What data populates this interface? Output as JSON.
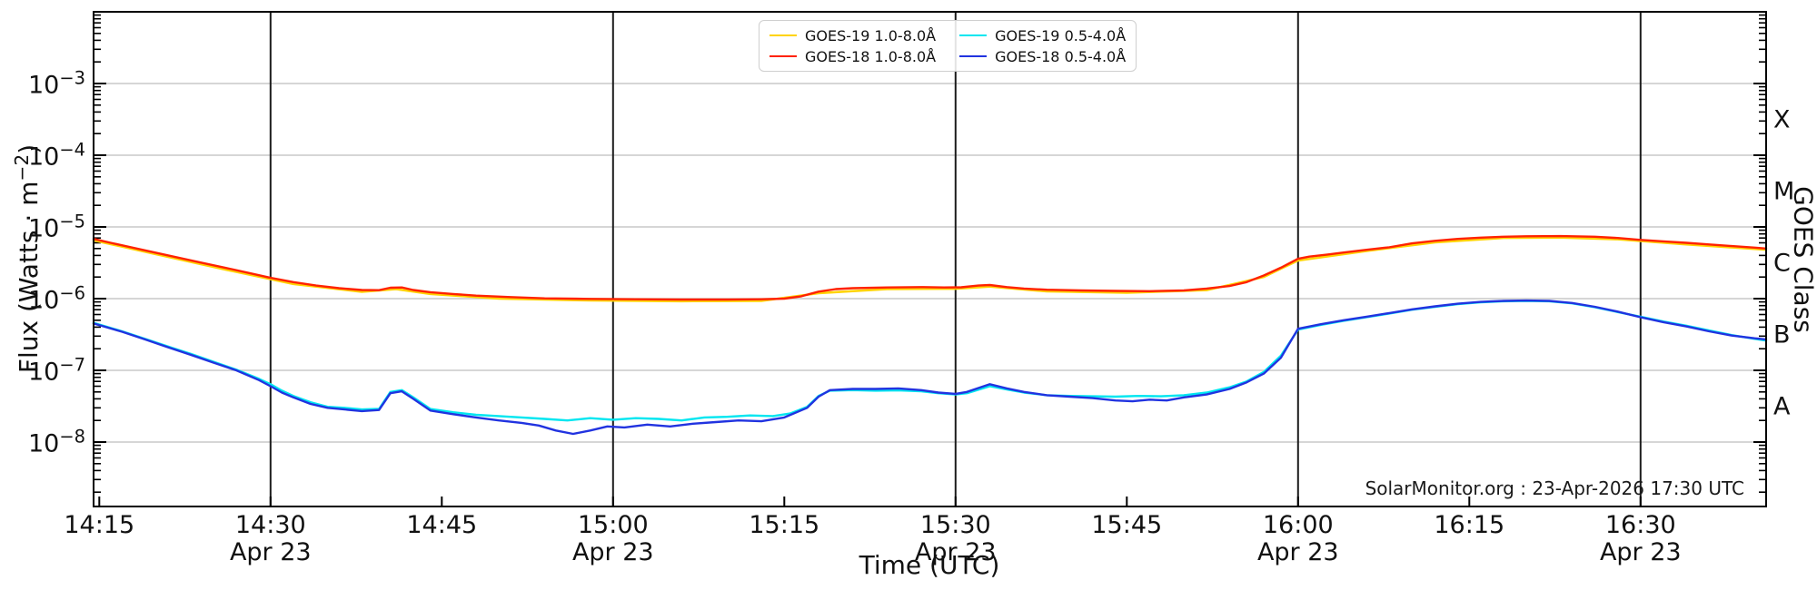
{
  "footer": {
    "credit": "SolarMonitor.org : 23-Apr-2026 17:30 UTC"
  },
  "chart_data": {
    "type": "line",
    "title": "",
    "xlabel": "Time (UTC)",
    "ylabel_prefix": "Flux (Watts · m",
    "ylabel_sup": "−2",
    "ylabel_suffix": ")",
    "right_axis_label": "GOES Class",
    "x_unit": "minutes after 14:00 UTC, 23 Apr",
    "xlim_minutes": [
      14.5,
      161
    ],
    "ylim": [
      1.3e-09,
      0.01
    ],
    "grid": "horizontal gray lines at each decade; dark vertical lines at 30-minute marks",
    "legend_position": "top center, 2 columns",
    "colors": {
      "grid": "#c9c9c9",
      "dark_gridline": "#1c1c1c",
      "spine": "#000000",
      "text": "#111111",
      "goes19_long": "#ffd300",
      "goes18_long": "#ff2200",
      "goes19_short": "#00e6f0",
      "goes18_short": "#2133e0"
    },
    "x_major_ticks": [
      {
        "minute": 15,
        "label": "14:15",
        "sublabel": ""
      },
      {
        "minute": 30,
        "label": "14:30",
        "sublabel": "Apr 23"
      },
      {
        "minute": 45,
        "label": "14:45",
        "sublabel": ""
      },
      {
        "minute": 60,
        "label": "15:00",
        "sublabel": "Apr 23"
      },
      {
        "minute": 75,
        "label": "15:15",
        "sublabel": ""
      },
      {
        "minute": 90,
        "label": "15:30",
        "sublabel": "Apr 23"
      },
      {
        "minute": 105,
        "label": "15:45",
        "sublabel": ""
      },
      {
        "minute": 120,
        "label": "16:00",
        "sublabel": "Apr 23"
      },
      {
        "minute": 135,
        "label": "16:15",
        "sublabel": ""
      },
      {
        "minute": 150,
        "label": "16:30",
        "sublabel": "Apr 23"
      }
    ],
    "x_dark_gridline_minutes": [
      30,
      60,
      90,
      120,
      150
    ],
    "y_major_exponents": [
      -3,
      -4,
      -5,
      -6,
      -7,
      -8
    ],
    "goes_class_labels": [
      {
        "label": "X",
        "flux_exponent": -3.5
      },
      {
        "label": "M",
        "flux_exponent": -4.5
      },
      {
        "label": "C",
        "flux_exponent": -5.5
      },
      {
        "label": "B",
        "flux_exponent": -6.5
      },
      {
        "label": "A",
        "flux_exponent": -7.5
      }
    ],
    "legend_items": [
      {
        "label": "GOES-19 1.0-8.0Å",
        "color": "#ffd300"
      },
      {
        "label": "GOES-18 1.0-8.0Å",
        "color": "#ff2200"
      },
      {
        "label": "GOES-19 0.5-4.0Å",
        "color": "#00e6f0"
      },
      {
        "label": "GOES-18 0.5-4.0Å",
        "color": "#2133e0"
      }
    ],
    "series": [
      {
        "id": "goes19-long",
        "name": "GOES-19 1.0-8.0Å",
        "color": "#ffd300",
        "points": [
          [
            14.5,
            6.5e-06
          ],
          [
            20,
            4.15e-06
          ],
          [
            26,
            2.55e-06
          ],
          [
            32,
            1.6e-06
          ],
          [
            38,
            1.24e-06
          ],
          [
            41,
            1.36e-06
          ],
          [
            44,
            1.16e-06
          ],
          [
            50,
            1e-06
          ],
          [
            58,
            9.4e-07
          ],
          [
            66,
            9.2e-07
          ],
          [
            73,
            9.3e-07
          ],
          [
            78,
            1.19e-06
          ],
          [
            84,
            1.36e-06
          ],
          [
            90,
            1.37e-06
          ],
          [
            93,
            1.47e-06
          ],
          [
            98,
            1.26e-06
          ],
          [
            105,
            1.21e-06
          ],
          [
            112,
            1.31e-06
          ],
          [
            117,
            2e-06
          ],
          [
            120,
            3.4e-06
          ],
          [
            126,
            4.6e-06
          ],
          [
            132,
            6.1e-06
          ],
          [
            138,
            7e-06
          ],
          [
            143,
            7.1e-06
          ],
          [
            148,
            6.7e-06
          ],
          [
            154,
            5.7e-06
          ],
          [
            161,
            4.8e-06
          ]
        ]
      },
      {
        "id": "goes19-short",
        "name": "GOES-19 0.5-4.0Å",
        "color": "#00e6f0",
        "points": [
          [
            14.5,
            4.6e-07
          ],
          [
            17,
            3.5e-07
          ],
          [
            19,
            2.75e-07
          ],
          [
            21,
            2.15e-07
          ],
          [
            23,
            1.7e-07
          ],
          [
            25,
            1.32e-07
          ],
          [
            27,
            1.02e-07
          ],
          [
            29,
            7.6e-08
          ],
          [
            30,
            6.4e-08
          ],
          [
            31,
            5.2e-08
          ],
          [
            32,
            4.4e-08
          ],
          [
            33.5,
            3.6e-08
          ],
          [
            35,
            3.1e-08
          ],
          [
            36.5,
            3e-08
          ],
          [
            38,
            2.85e-08
          ],
          [
            39.5,
            2.9e-08
          ],
          [
            40.5,
            5e-08
          ],
          [
            41.5,
            5.3e-08
          ],
          [
            42.5,
            4.2e-08
          ],
          [
            44,
            2.9e-08
          ],
          [
            46,
            2.6e-08
          ],
          [
            48,
            2.4e-08
          ],
          [
            50,
            2.3e-08
          ],
          [
            52,
            2.2e-08
          ],
          [
            54,
            2.1e-08
          ],
          [
            56,
            2e-08
          ],
          [
            58,
            2.15e-08
          ],
          [
            60,
            2.05e-08
          ],
          [
            62,
            2.15e-08
          ],
          [
            64,
            2.1e-08
          ],
          [
            66,
            2e-08
          ],
          [
            68,
            2.2e-08
          ],
          [
            70,
            2.25e-08
          ],
          [
            72,
            2.35e-08
          ],
          [
            74,
            2.3e-08
          ],
          [
            75.5,
            2.5e-08
          ],
          [
            77,
            3.1e-08
          ],
          [
            78,
            4.4e-08
          ],
          [
            79,
            5.2e-08
          ],
          [
            81,
            5.3e-08
          ],
          [
            83,
            5.2e-08
          ],
          [
            85,
            5.25e-08
          ],
          [
            87,
            5.1e-08
          ],
          [
            88.5,
            4.8e-08
          ],
          [
            90,
            4.6e-08
          ],
          [
            91,
            4.8e-08
          ],
          [
            93,
            6e-08
          ],
          [
            94.5,
            5.4e-08
          ],
          [
            96,
            4.9e-08
          ],
          [
            98,
            4.5e-08
          ],
          [
            100,
            4.4e-08
          ],
          [
            102,
            4.35e-08
          ],
          [
            104,
            4.3e-08
          ],
          [
            106,
            4.4e-08
          ],
          [
            108,
            4.35e-08
          ],
          [
            110,
            4.5e-08
          ],
          [
            112,
            4.9e-08
          ],
          [
            114,
            5.8e-08
          ],
          [
            115.5,
            7e-08
          ],
          [
            117,
            9.5e-08
          ],
          [
            118.5,
            1.6e-07
          ],
          [
            120,
            3.7e-07
          ],
          [
            122,
            4.3e-07
          ],
          [
            124,
            4.9e-07
          ],
          [
            126,
            5.5e-07
          ],
          [
            128,
            6.2e-07
          ],
          [
            130,
            7e-07
          ],
          [
            132,
            7.7e-07
          ],
          [
            134,
            8.4e-07
          ],
          [
            136,
            8.9e-07
          ],
          [
            138,
            9.2e-07
          ],
          [
            140,
            9.3e-07
          ],
          [
            142,
            9.2e-07
          ],
          [
            144,
            8.6e-07
          ],
          [
            146,
            7.6e-07
          ],
          [
            148,
            6.5e-07
          ],
          [
            150,
            5.6e-07
          ],
          [
            152,
            4.8e-07
          ],
          [
            154,
            4.2e-07
          ],
          [
            156,
            3.6e-07
          ],
          [
            158,
            3.1e-07
          ],
          [
            160,
            2.75e-07
          ],
          [
            161,
            2.6e-07
          ]
        ]
      },
      {
        "id": "goes18-long",
        "name": "GOES-18 1.0-8.0Å",
        "color": "#ff2200",
        "points": [
          [
            14.5,
            6.8e-06
          ],
          [
            16,
            6e-06
          ],
          [
            18,
            5.1e-06
          ],
          [
            20,
            4.35e-06
          ],
          [
            22,
            3.7e-06
          ],
          [
            24,
            3.15e-06
          ],
          [
            26,
            2.7e-06
          ],
          [
            28,
            2.3e-06
          ],
          [
            30,
            1.95e-06
          ],
          [
            32,
            1.7e-06
          ],
          [
            34,
            1.52e-06
          ],
          [
            36,
            1.4e-06
          ],
          [
            38,
            1.32e-06
          ],
          [
            39.5,
            1.31e-06
          ],
          [
            40.5,
            1.42e-06
          ],
          [
            41.5,
            1.43e-06
          ],
          [
            42.5,
            1.32e-06
          ],
          [
            44,
            1.23e-06
          ],
          [
            46,
            1.16e-06
          ],
          [
            48,
            1.1e-06
          ],
          [
            51,
            1.05e-06
          ],
          [
            54,
            1.01e-06
          ],
          [
            58,
            9.9e-07
          ],
          [
            62,
            9.8e-07
          ],
          [
            66,
            9.7e-07
          ],
          [
            70,
            9.7e-07
          ],
          [
            73,
            9.8e-07
          ],
          [
            75,
            1e-06
          ],
          [
            76.5,
            1.08e-06
          ],
          [
            78,
            1.25e-06
          ],
          [
            79.5,
            1.36e-06
          ],
          [
            81,
            1.4e-06
          ],
          [
            84,
            1.43e-06
          ],
          [
            87,
            1.45e-06
          ],
          [
            89,
            1.43e-06
          ],
          [
            90.5,
            1.44e-06
          ],
          [
            92,
            1.52e-06
          ],
          [
            93,
            1.55e-06
          ],
          [
            94.5,
            1.45e-06
          ],
          [
            96,
            1.38e-06
          ],
          [
            98,
            1.33e-06
          ],
          [
            101,
            1.3e-06
          ],
          [
            104,
            1.28e-06
          ],
          [
            107,
            1.27e-06
          ],
          [
            110,
            1.3e-06
          ],
          [
            112,
            1.38e-06
          ],
          [
            114,
            1.5e-06
          ],
          [
            115.5,
            1.7e-06
          ],
          [
            117,
            2.1e-06
          ],
          [
            118.5,
            2.7e-06
          ],
          [
            120,
            3.6e-06
          ],
          [
            121,
            3.85e-06
          ],
          [
            122.5,
            4.1e-06
          ],
          [
            124,
            4.4e-06
          ],
          [
            126,
            4.8e-06
          ],
          [
            128,
            5.2e-06
          ],
          [
            130,
            5.9e-06
          ],
          [
            132,
            6.4e-06
          ],
          [
            134,
            6.8e-06
          ],
          [
            136,
            7.1e-06
          ],
          [
            138,
            7.3e-06
          ],
          [
            140,
            7.4e-06
          ],
          [
            143,
            7.45e-06
          ],
          [
            146,
            7.3e-06
          ],
          [
            148,
            7e-06
          ],
          [
            150,
            6.6e-06
          ],
          [
            152,
            6.3e-06
          ],
          [
            154,
            6e-06
          ],
          [
            156,
            5.7e-06
          ],
          [
            158,
            5.4e-06
          ],
          [
            160,
            5.15e-06
          ],
          [
            161,
            5e-06
          ]
        ]
      },
      {
        "id": "goes18-short",
        "name": "GOES-18 0.5-4.0Å",
        "color": "#2133e0",
        "points": [
          [
            14.5,
            4.5e-07
          ],
          [
            17,
            3.45e-07
          ],
          [
            19,
            2.7e-07
          ],
          [
            21,
            2.1e-07
          ],
          [
            23,
            1.65e-07
          ],
          [
            25,
            1.28e-07
          ],
          [
            27,
            1e-07
          ],
          [
            29,
            7.3e-08
          ],
          [
            30,
            6e-08
          ],
          [
            31,
            4.9e-08
          ],
          [
            32,
            4.2e-08
          ],
          [
            33.5,
            3.4e-08
          ],
          [
            35,
            3e-08
          ],
          [
            36.5,
            2.85e-08
          ],
          [
            38,
            2.7e-08
          ],
          [
            39.5,
            2.8e-08
          ],
          [
            40.5,
            4.8e-08
          ],
          [
            41.5,
            5.1e-08
          ],
          [
            42.5,
            4e-08
          ],
          [
            44,
            2.75e-08
          ],
          [
            46,
            2.45e-08
          ],
          [
            48,
            2.2e-08
          ],
          [
            50,
            2e-08
          ],
          [
            52,
            1.85e-08
          ],
          [
            53.5,
            1.7e-08
          ],
          [
            55,
            1.45e-08
          ],
          [
            56.5,
            1.3e-08
          ],
          [
            58,
            1.45e-08
          ],
          [
            59.5,
            1.65e-08
          ],
          [
            61,
            1.6e-08
          ],
          [
            63,
            1.75e-08
          ],
          [
            65,
            1.65e-08
          ],
          [
            67,
            1.8e-08
          ],
          [
            69,
            1.9e-08
          ],
          [
            71,
            2e-08
          ],
          [
            73,
            1.95e-08
          ],
          [
            75,
            2.2e-08
          ],
          [
            77,
            3e-08
          ],
          [
            78,
            4.3e-08
          ],
          [
            79,
            5.3e-08
          ],
          [
            81,
            5.5e-08
          ],
          [
            83,
            5.5e-08
          ],
          [
            85,
            5.6e-08
          ],
          [
            87,
            5.3e-08
          ],
          [
            88.5,
            4.9e-08
          ],
          [
            90,
            4.7e-08
          ],
          [
            91,
            5e-08
          ],
          [
            93,
            6.4e-08
          ],
          [
            94.5,
            5.6e-08
          ],
          [
            96,
            5e-08
          ],
          [
            98,
            4.5e-08
          ],
          [
            100,
            4.3e-08
          ],
          [
            102,
            4.1e-08
          ],
          [
            104,
            3.8e-08
          ],
          [
            105.5,
            3.7e-08
          ],
          [
            107,
            3.9e-08
          ],
          [
            108.5,
            3.8e-08
          ],
          [
            110,
            4.2e-08
          ],
          [
            112,
            4.6e-08
          ],
          [
            114,
            5.5e-08
          ],
          [
            115.5,
            6.8e-08
          ],
          [
            117,
            9e-08
          ],
          [
            118.5,
            1.5e-07
          ],
          [
            120,
            3.8e-07
          ],
          [
            122,
            4.4e-07
          ],
          [
            124,
            5e-07
          ],
          [
            126,
            5.6e-07
          ],
          [
            128,
            6.3e-07
          ],
          [
            130,
            7.1e-07
          ],
          [
            132,
            7.8e-07
          ],
          [
            134,
            8.5e-07
          ],
          [
            136,
            9e-07
          ],
          [
            138,
            9.3e-07
          ],
          [
            140,
            9.4e-07
          ],
          [
            142,
            9.3e-07
          ],
          [
            144,
            8.7e-07
          ],
          [
            146,
            7.7e-07
          ],
          [
            148,
            6.6e-07
          ],
          [
            150,
            5.5e-07
          ],
          [
            152,
            4.7e-07
          ],
          [
            154,
            4.1e-07
          ],
          [
            156,
            3.5e-07
          ],
          [
            158,
            3.05e-07
          ],
          [
            160,
            2.8e-07
          ],
          [
            161,
            2.7e-07
          ]
        ]
      }
    ]
  }
}
